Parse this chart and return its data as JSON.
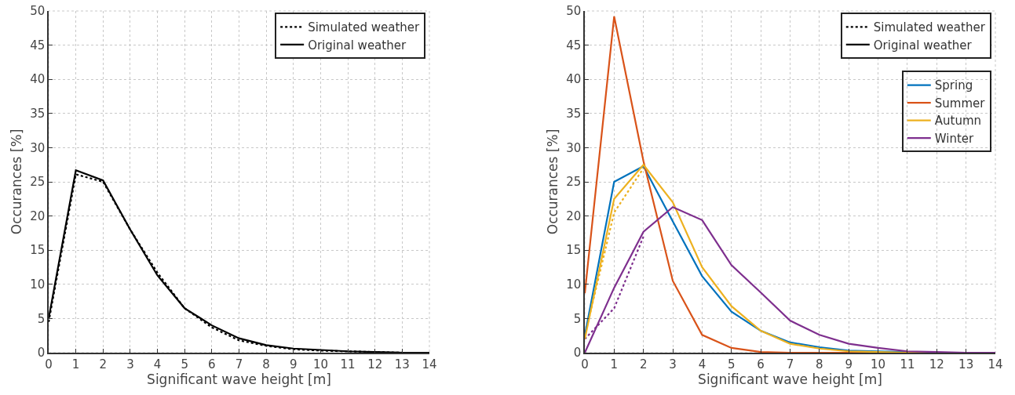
{
  "chart_data": [
    {
      "type": "line",
      "xlabel": "Significant wave height [m]",
      "ylabel": "Occurances [%]",
      "x": [
        0,
        1,
        2,
        3,
        4,
        5,
        6,
        7,
        8,
        9,
        10,
        11,
        12,
        13,
        14
      ],
      "series": [
        {
          "name": "Simulated weather",
          "color": "#000000",
          "line_style": "dotted",
          "values": [
            4.5,
            26.1,
            25,
            18,
            11.7,
            6.5,
            3.7,
            1.8,
            1,
            0.5,
            0.3,
            0.2,
            0.1,
            0,
            0
          ]
        },
        {
          "name": "Original weather",
          "color": "#000000",
          "line_style": "solid",
          "values": [
            5,
            26.7,
            25.2,
            18,
            11.3,
            6.5,
            4,
            2.1,
            1.1,
            0.6,
            0.4,
            0.2,
            0.1,
            0,
            0
          ]
        }
      ],
      "xlim": [
        0,
        14
      ],
      "xticks": [
        0,
        1,
        2,
        3,
        4,
        5,
        6,
        7,
        8,
        9,
        10,
        11,
        12,
        13,
        14
      ],
      "ylim": [
        0,
        50
      ],
      "yticks": [
        0,
        5,
        10,
        15,
        20,
        25,
        30,
        35,
        40,
        45,
        50
      ],
      "grid": true,
      "legend": "top right"
    },
    {
      "type": "line",
      "xlabel": "Significant wave height [m]",
      "ylabel": "Occurances [%]",
      "x": [
        0,
        1,
        2,
        3,
        4,
        5,
        6,
        7,
        8,
        9,
        10,
        11,
        12,
        13,
        14
      ],
      "series": [
        {
          "name": "Simulated weather",
          "color": "#000000",
          "line_style": "dotted",
          "values": [
            null,
            null,
            null,
            null,
            null,
            null,
            null,
            null,
            null,
            null,
            null,
            null,
            null,
            null,
            null
          ]
        },
        {
          "name": "Original weather",
          "color": "#000000",
          "line_style": "solid",
          "values": [
            null,
            null,
            null,
            null,
            null,
            null,
            null,
            null,
            null,
            null,
            null,
            null,
            null,
            null,
            null
          ]
        },
        {
          "color": "#edb120",
          "line_style": "dotted",
          "x": [
            0,
            1,
            2
          ],
          "values": [
            2.5,
            20.5,
            27
          ]
        },
        {
          "color": "#7e2f8e",
          "line_style": "dotted",
          "x": [
            0,
            1,
            2
          ],
          "values": [
            2,
            6.5,
            17
          ]
        },
        {
          "name": "Spring",
          "color": "#0072bd",
          "line_style": "solid",
          "values": [
            2.5,
            25,
            27.3,
            19.2,
            11.2,
            6,
            3.2,
            1.5,
            0.8,
            0.3,
            0.2,
            0.1,
            0,
            null,
            null
          ]
        },
        {
          "name": "Summer",
          "color": "#d95319",
          "line_style": "solid",
          "values": [
            8.7,
            49.2,
            28,
            10.5,
            2.6,
            0.7,
            0.1,
            0,
            0,
            0,
            0,
            0,
            0,
            null,
            null
          ]
        },
        {
          "name": "Autumn",
          "color": "#edb120",
          "line_style": "solid",
          "values": [
            2,
            22.5,
            27.5,
            22,
            12.5,
            6.8,
            3.2,
            1.3,
            0.6,
            0.2,
            0.1,
            0,
            0,
            null,
            null
          ]
        },
        {
          "name": "Winter",
          "color": "#7e2f8e",
          "line_style": "solid",
          "values": [
            0,
            9.5,
            17.7,
            21.3,
            19.4,
            12.8,
            8.8,
            4.7,
            2.6,
            1.3,
            0.7,
            0.2,
            0.1,
            0,
            0
          ]
        }
      ],
      "xlim": [
        0,
        14
      ],
      "xticks": [
        0,
        1,
        2,
        3,
        4,
        5,
        6,
        7,
        8,
        9,
        10,
        11,
        12,
        13,
        14
      ],
      "ylim": [
        0,
        50
      ],
      "yticks": [
        0,
        5,
        10,
        15,
        20,
        25,
        30,
        35,
        40,
        45,
        50
      ],
      "grid": true,
      "legend": "top right"
    }
  ]
}
